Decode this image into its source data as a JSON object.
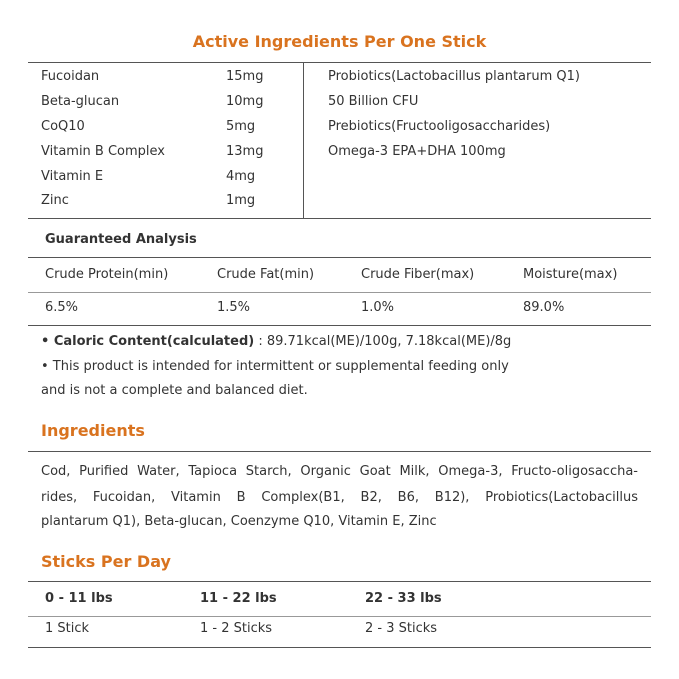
{
  "header": {
    "title": "Active Ingredients Per One Stick"
  },
  "active_ingredients": {
    "left": [
      [
        "Fucoidan",
        "15mg"
      ],
      [
        "Beta-glucan",
        "10mg"
      ],
      [
        "CoQ10",
        "5mg"
      ],
      [
        "Vitamin B Complex",
        "13mg"
      ],
      [
        "Vitamin E",
        "4mg"
      ],
      [
        "Zinc",
        "1mg"
      ]
    ],
    "right": [
      "Probiotics(Lactobacillus plantarum Q1)",
      "50 Billion CFU",
      "Prebiotics(Fructooligosaccharides)",
      "Omega-3 EPA+DHA 100mg"
    ]
  },
  "analysis": {
    "title": "Guaranteed Analysis",
    "headers": [
      "Crude Protein(min)",
      "Crude Fat(min)",
      "Crude Fiber(max)",
      "Moisture(max)"
    ],
    "values": [
      "6.5%",
      "1.5%",
      "1.0%",
      "89.0%"
    ]
  },
  "notes": {
    "caloric_label": "• Caloric Content(calculated)",
    "caloric_value": " : 89.71kcal(ME)/100g, 7.18kcal(ME)/8g",
    "disclaimer": [
      "• This product is intended for intermittent or supplemental feeding only",
      "and is not a complete and balanced diet."
    ]
  },
  "ingredients": {
    "title": "Ingredients",
    "lines": [
      "Cod, Purified Water, Tapioca Starch, Organic Goat Milk, Omega-3, Fructo-oligosaccha-",
      "rides, Fucoidan, Vitamin B Complex(B1, B2, B6, B12), Probiotics(Lactobacillus",
      "plantarum Q1), Beta-glucan, Coenzyme Q10, Vitamin E, Zinc"
    ]
  },
  "sticks": {
    "title": "Sticks Per Day",
    "headers": [
      "0 - 11 lbs",
      "11 - 22 lbs",
      "22 - 33 lbs"
    ],
    "values": [
      "1 Stick",
      "1 - 2 Sticks",
      "2 - 3 Sticks"
    ]
  }
}
